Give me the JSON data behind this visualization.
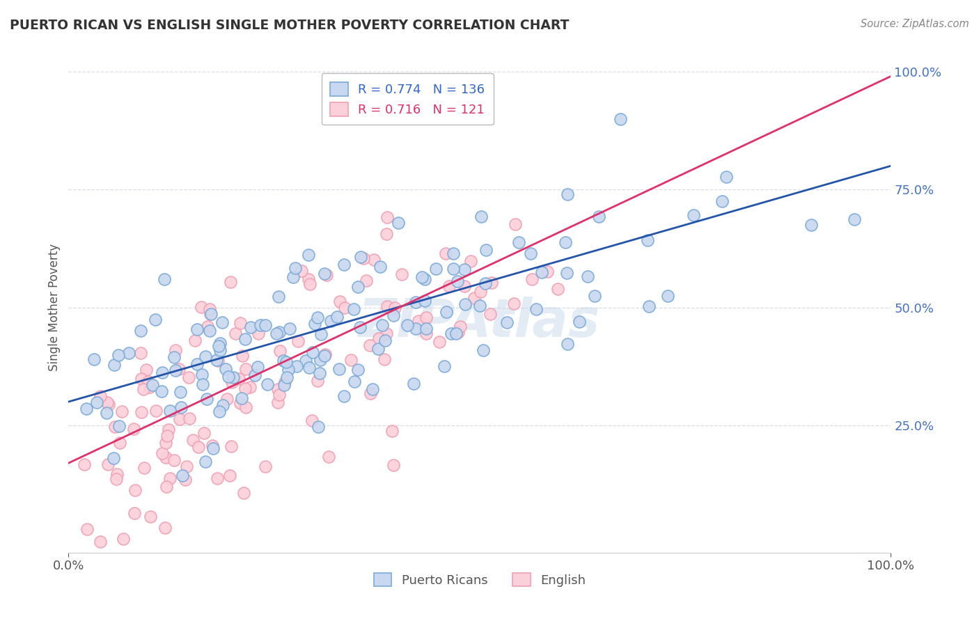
{
  "title": "PUERTO RICAN VS ENGLISH SINGLE MOTHER POVERTY CORRELATION CHART",
  "source": "Source: ZipAtlas.com",
  "ylabel": "Single Mother Poverty",
  "blue_R": 0.774,
  "blue_N": 136,
  "pink_R": 0.716,
  "pink_N": 121,
  "watermark": "ZipAtlas",
  "background_color": "#ffffff",
  "grid_color": "#d8dde6",
  "blue_scatter_face": "#c8d8f0",
  "blue_scatter_edge": "#7aaad8",
  "pink_scatter_face": "#fcd0da",
  "pink_scatter_edge": "#f0a0b4",
  "blue_line_color": "#2255aa",
  "pink_line_color": "#e0306a",
  "blue_text_color": "#3366cc",
  "pink_text_color": "#e0306a",
  "ytick_color": "#4472c4",
  "xtick_color": "#555555",
  "title_color": "#333333",
  "source_color": "#888888",
  "ylabel_color": "#555555",
  "blue_intercept": 0.3,
  "blue_slope": 0.48,
  "pink_intercept": 0.15,
  "pink_slope": 0.8
}
